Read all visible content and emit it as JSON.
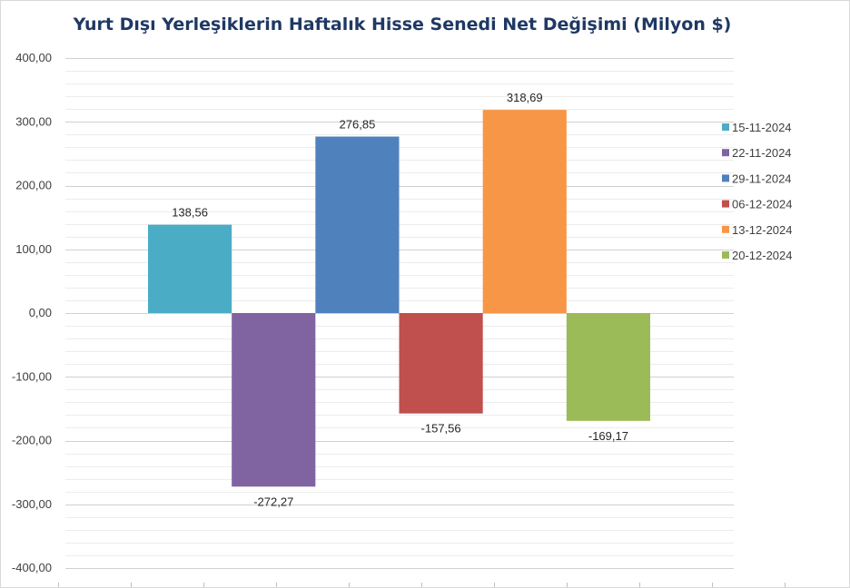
{
  "chart_data": {
    "type": "bar",
    "title": "Yurt Dışı Yerleşiklerin Haftalık Hisse Senedi Net Değişimi (Milyon $)",
    "xlabel": "",
    "ylabel": "",
    "ylim": [
      -400,
      400
    ],
    "yticks": [
      "400,00",
      "300,00",
      "200,00",
      "100,00",
      "0,00",
      "-100,00",
      "-200,00",
      "-300,00",
      "-400,00"
    ],
    "grid": true,
    "legend_position": "right",
    "series": [
      {
        "name": "15-11-2024",
        "value": 138.56,
        "label": "138,56",
        "color": "#4bacc6"
      },
      {
        "name": "22-11-2024",
        "value": -272.27,
        "label": "-272,27",
        "color": "#8064a2"
      },
      {
        "name": "29-11-2024",
        "value": 276.85,
        "label": "276,85",
        "color": "#4f81bd"
      },
      {
        "name": "06-12-2024",
        "value": -157.56,
        "label": "-157,56",
        "color": "#c0504d"
      },
      {
        "name": "13-12-2024",
        "value": 318.69,
        "label": "318,69",
        "color": "#f79646"
      },
      {
        "name": "20-12-2024",
        "value": -169.17,
        "label": "-169,17",
        "color": "#9bbb59"
      }
    ]
  }
}
